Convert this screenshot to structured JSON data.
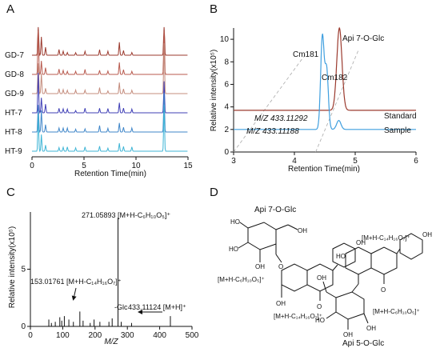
{
  "panels": {
    "A": "A",
    "B": "B",
    "C": "C",
    "D": "D"
  },
  "chart_data": [
    {
      "panel": "A",
      "type": "line",
      "xlabel": "Retention Time(min)",
      "ylabel": "",
      "xlim": [
        0,
        15
      ],
      "xticks": [
        "0",
        "5",
        "10",
        "15"
      ],
      "series": [
        {
          "name": "GD-7",
          "color": "#9b3a2e"
        },
        {
          "name": "GD-8",
          "color": "#b85a4e"
        },
        {
          "name": "GD-9",
          "color": "#c48c7d"
        },
        {
          "name": "HT-7",
          "color": "#3f3fb6"
        },
        {
          "name": "HT-8",
          "color": "#3f86c9"
        },
        {
          "name": "HT-9",
          "color": "#3fb5d6"
        }
      ],
      "peaks": [
        {
          "x": 0.6,
          "h": 60
        },
        {
          "x": 0.9,
          "h": 30
        },
        {
          "x": 1.3,
          "h": 12
        },
        {
          "x": 2.6,
          "h": 8
        },
        {
          "x": 3.0,
          "h": 10
        },
        {
          "x": 3.4,
          "h": 6
        },
        {
          "x": 4.2,
          "h": 5
        },
        {
          "x": 5.1,
          "h": 7
        },
        {
          "x": 6.5,
          "h": 9
        },
        {
          "x": 7.3,
          "h": 6
        },
        {
          "x": 8.4,
          "h": 18
        },
        {
          "x": 8.8,
          "h": 12
        },
        {
          "x": 9.6,
          "h": 6
        },
        {
          "x": 12.7,
          "h": 70
        }
      ]
    },
    {
      "panel": "B",
      "type": "line",
      "xlabel": "Retention Time(min)",
      "ylabel": "Relative intensity(x10⁵)",
      "xlim": [
        3,
        6
      ],
      "ylim": [
        0,
        11
      ],
      "xticks": [
        "3",
        "4",
        "5",
        "6"
      ],
      "yticks": [
        "0",
        "2",
        "4",
        "6",
        "8",
        "10"
      ],
      "annotations": [
        "Api 7-O-Glc",
        "Cm181",
        "Cm182",
        "M/Z 433.11292",
        "M/Z 433.11188",
        "Standard",
        "Sample"
      ],
      "series": [
        {
          "name": "Standard",
          "color": "#9b3a2e",
          "baseline": 3.7,
          "peaks": [
            {
              "x": 4.74,
              "h": 7.3,
              "w": 0.06
            }
          ]
        },
        {
          "name": "Sample",
          "color": "#3f9fdf",
          "baseline": 2.0,
          "peaks": [
            {
              "x": 4.46,
              "h": 8.2,
              "w": 0.04
            },
            {
              "x": 4.53,
              "h": 5.3,
              "w": 0.04
            },
            {
              "x": 4.73,
              "h": 0.8,
              "w": 0.05
            }
          ]
        }
      ]
    },
    {
      "panel": "C",
      "type": "bar",
      "xlabel": "M/Z",
      "ylabel": "Relative intensity(x10⁵)",
      "xlim": [
        0,
        500
      ],
      "ylim": [
        0,
        10
      ],
      "xticks": [
        "0",
        "100",
        "200",
        "300",
        "400",
        "500"
      ],
      "yticks": [
        "0",
        "5"
      ],
      "annotations": [
        {
          "text": "271.05893 [M+H-C₆H₁₀O₅]⁺",
          "x": 271.06
        },
        {
          "text": "153.01761 [M+H-C₁₄H₁₆O₇]⁺",
          "x": 153.02
        },
        {
          "text": "-Glc"
        },
        {
          "text": "433.11124 [M+H]⁺",
          "x": 433.11
        }
      ],
      "peaks": [
        {
          "x": 57,
          "y": 0.6
        },
        {
          "x": 65,
          "y": 0.3
        },
        {
          "x": 77,
          "y": 0.4
        },
        {
          "x": 91,
          "y": 0.8
        },
        {
          "x": 97,
          "y": 0.5
        },
        {
          "x": 105,
          "y": 0.9
        },
        {
          "x": 119,
          "y": 0.6
        },
        {
          "x": 133,
          "y": 0.4
        },
        {
          "x": 153.02,
          "y": 1.3
        },
        {
          "x": 163,
          "y": 0.5
        },
        {
          "x": 185,
          "y": 0.3
        },
        {
          "x": 197,
          "y": 0.6
        },
        {
          "x": 215,
          "y": 0.4
        },
        {
          "x": 243,
          "y": 0.4
        },
        {
          "x": 253,
          "y": 0.7
        },
        {
          "x": 271.06,
          "y": 9.5
        },
        {
          "x": 281,
          "y": 0.4
        },
        {
          "x": 313,
          "y": 0.3
        },
        {
          "x": 433.11,
          "y": 0.9
        }
      ]
    }
  ],
  "diagram_D": {
    "top_title": "Api 7-O-Glc",
    "bottom_title": "Api 5-O-Glc",
    "fragments": {
      "f1": "[M+H-C₆H₁₀O₅]⁺",
      "f2": "[M+H-C₁₄H₁₆O₇]⁺",
      "f3": "[M+H-C₁₄H₁₆O₇]⁺",
      "f4": "[M+H-C₆H₁₀O₅]⁺"
    },
    "atoms": {
      "oh": "OH",
      "ho": "HO",
      "o": "O"
    }
  }
}
